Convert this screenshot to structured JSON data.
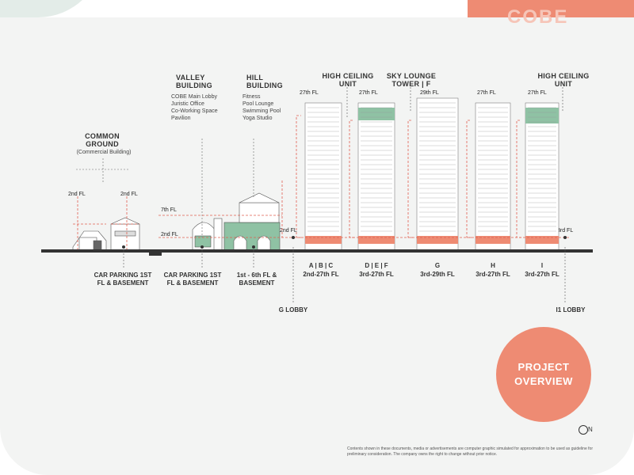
{
  "corner_text": "COBE",
  "common_ground": {
    "title": "COMMON GROUND",
    "sub": "(Commercial Building)",
    "fl_left": "2nd FL",
    "fl_right": "2nd FL"
  },
  "valley": {
    "title": "VALLEY BUILDING",
    "items": [
      "COBE Main Lobby",
      "Juristic Office",
      "Co-Working Space",
      "Pavilion"
    ]
  },
  "hill": {
    "title": "HILL BUILDING",
    "items": [
      "Fitness",
      "Pool Lounge",
      "Swimming Pool",
      "Yoga Studio"
    ]
  },
  "floor_marks": {
    "seventh": "7th FL",
    "second_left": "2nd FL",
    "second_mid": "2nd FL",
    "third_right": "3rd FL"
  },
  "top_labels": {
    "high_ceiling_1": "HIGH CEILING UNIT",
    "sky_lounge": "SKY LOUNGE TOWER | F",
    "high_ceiling_2": "HIGH CEILING UNIT"
  },
  "tower_tops": [
    "27th FL",
    "27th FL",
    "29th FL",
    "27th FL",
    "27th FL"
  ],
  "bottom": {
    "car1": "CAR PARKING 1ST FL & BASEMENT",
    "car2": "CAR PARKING 1ST FL & BASEMENT",
    "hill_fl": "1st - 6th FL & BASEMENT",
    "g_lobby": "G LOBBY",
    "i_lobby": "I1 LOBBY"
  },
  "towers": [
    {
      "name": "A | B | C",
      "floors": "2nd-27th FL"
    },
    {
      "name": "D | E | F",
      "floors": "3rd-27th FL"
    },
    {
      "name": "G",
      "floors": "3rd-29th FL"
    },
    {
      "name": "H",
      "floors": "3rd-27th FL"
    },
    {
      "name": "I",
      "floors": "3rd-27th FL"
    }
  ],
  "badge": "PROJECT OVERVIEW",
  "compass": "N",
  "disclaimer": "Contents shown in these documents, media or advertisements are computer graphic simulated for approximation to be used as guideline for preliminary consideration. The company owns the right to change without prior notice.",
  "colors": {
    "accent": "#ee8b73",
    "green": "#8fc2a4",
    "dashed": "#e06050"
  }
}
